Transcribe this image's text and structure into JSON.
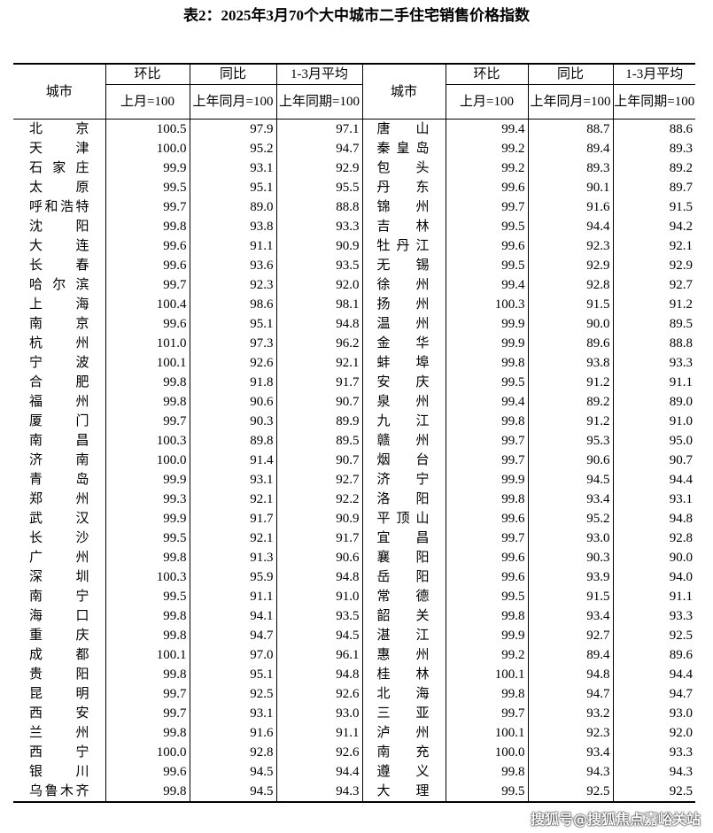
{
  "title": "表2：2025年3月70个大中城市二手住宅销售价格指数",
  "headers": {
    "city": "城市",
    "mom": "环比",
    "yoy": "同比",
    "avg": "1-3月平均",
    "mom_base": "上月=100",
    "yoy_base": "上年同月=100",
    "avg_base": "上年同期=100"
  },
  "rows": [
    [
      [
        "北京",
        "100.5",
        "97.9",
        "97.1"
      ],
      [
        "唐山",
        "99.4",
        "88.7",
        "88.6"
      ]
    ],
    [
      [
        "天津",
        "100.0",
        "95.2",
        "94.7"
      ],
      [
        "秦皇岛",
        "99.2",
        "89.4",
        "89.3"
      ]
    ],
    [
      [
        "石家庄",
        "99.9",
        "93.1",
        "92.9"
      ],
      [
        "包头",
        "99.2",
        "89.3",
        "89.2"
      ]
    ],
    [
      [
        "太原",
        "99.5",
        "95.1",
        "95.5"
      ],
      [
        "丹东",
        "99.6",
        "90.1",
        "89.7"
      ]
    ],
    [
      [
        "呼和浩特",
        "99.7",
        "89.0",
        "88.8"
      ],
      [
        "锦州",
        "99.7",
        "91.6",
        "91.5"
      ]
    ],
    [
      [
        "沈阳",
        "99.8",
        "93.8",
        "93.3"
      ],
      [
        "吉林",
        "99.5",
        "94.4",
        "94.2"
      ]
    ],
    [
      [
        "大连",
        "99.6",
        "91.1",
        "90.9"
      ],
      [
        "牡丹江",
        "99.6",
        "92.3",
        "92.1"
      ]
    ],
    [
      [
        "长春",
        "99.6",
        "93.6",
        "93.5"
      ],
      [
        "无锡",
        "99.5",
        "92.9",
        "92.9"
      ]
    ],
    [
      [
        "哈尔滨",
        "99.7",
        "92.3",
        "92.0"
      ],
      [
        "徐州",
        "99.4",
        "92.8",
        "92.7"
      ]
    ],
    [
      [
        "上海",
        "100.4",
        "98.6",
        "98.1"
      ],
      [
        "扬州",
        "100.3",
        "91.5",
        "91.2"
      ]
    ],
    [
      [
        "南京",
        "99.6",
        "95.1",
        "94.8"
      ],
      [
        "温州",
        "99.9",
        "90.0",
        "89.5"
      ]
    ],
    [
      [
        "杭州",
        "101.0",
        "97.3",
        "96.2"
      ],
      [
        "金华",
        "99.9",
        "89.6",
        "88.8"
      ]
    ],
    [
      [
        "宁波",
        "100.1",
        "92.6",
        "92.1"
      ],
      [
        "蚌埠",
        "99.8",
        "93.8",
        "93.3"
      ]
    ],
    [
      [
        "合肥",
        "99.8",
        "91.8",
        "91.7"
      ],
      [
        "安庆",
        "99.5",
        "91.2",
        "91.1"
      ]
    ],
    [
      [
        "福州",
        "99.8",
        "90.6",
        "90.7"
      ],
      [
        "泉州",
        "99.4",
        "89.2",
        "89.0"
      ]
    ],
    [
      [
        "厦门",
        "99.7",
        "90.3",
        "89.9"
      ],
      [
        "九江",
        "99.8",
        "91.2",
        "91.0"
      ]
    ],
    [
      [
        "南昌",
        "100.3",
        "89.8",
        "89.5"
      ],
      [
        "赣州",
        "99.7",
        "95.3",
        "95.0"
      ]
    ],
    [
      [
        "济南",
        "100.0",
        "91.4",
        "90.7"
      ],
      [
        "烟台",
        "99.7",
        "90.6",
        "90.7"
      ]
    ],
    [
      [
        "青岛",
        "99.9",
        "93.1",
        "92.7"
      ],
      [
        "济宁",
        "99.9",
        "94.5",
        "94.4"
      ]
    ],
    [
      [
        "郑州",
        "99.3",
        "92.1",
        "92.2"
      ],
      [
        "洛阳",
        "99.8",
        "93.4",
        "93.1"
      ]
    ],
    [
      [
        "武汉",
        "99.9",
        "91.7",
        "90.9"
      ],
      [
        "平顶山",
        "99.6",
        "95.2",
        "94.8"
      ]
    ],
    [
      [
        "长沙",
        "99.5",
        "92.1",
        "91.7"
      ],
      [
        "宜昌",
        "99.7",
        "93.0",
        "92.8"
      ]
    ],
    [
      [
        "广州",
        "99.8",
        "91.3",
        "90.6"
      ],
      [
        "襄阳",
        "99.6",
        "90.3",
        "90.0"
      ]
    ],
    [
      [
        "深圳",
        "100.3",
        "95.9",
        "94.8"
      ],
      [
        "岳阳",
        "99.6",
        "93.9",
        "94.0"
      ]
    ],
    [
      [
        "南宁",
        "99.5",
        "91.1",
        "91.0"
      ],
      [
        "常德",
        "99.5",
        "91.5",
        "91.1"
      ]
    ],
    [
      [
        "海口",
        "99.8",
        "94.1",
        "93.5"
      ],
      [
        "韶关",
        "99.8",
        "93.4",
        "93.3"
      ]
    ],
    [
      [
        "重庆",
        "99.8",
        "94.7",
        "94.5"
      ],
      [
        "湛江",
        "99.9",
        "92.7",
        "92.5"
      ]
    ],
    [
      [
        "成都",
        "100.1",
        "97.0",
        "96.1"
      ],
      [
        "惠州",
        "99.2",
        "89.4",
        "89.6"
      ]
    ],
    [
      [
        "贵阳",
        "99.8",
        "95.1",
        "94.8"
      ],
      [
        "桂林",
        "100.1",
        "94.8",
        "94.4"
      ]
    ],
    [
      [
        "昆明",
        "99.7",
        "92.5",
        "92.6"
      ],
      [
        "北海",
        "99.8",
        "94.7",
        "94.7"
      ]
    ],
    [
      [
        "西安",
        "99.7",
        "93.1",
        "93.0"
      ],
      [
        "三亚",
        "99.7",
        "93.2",
        "93.0"
      ]
    ],
    [
      [
        "兰州",
        "99.8",
        "91.6",
        "91.1"
      ],
      [
        "泸州",
        "100.1",
        "92.3",
        "92.0"
      ]
    ],
    [
      [
        "西宁",
        "100.0",
        "92.8",
        "92.6"
      ],
      [
        "南充",
        "100.0",
        "93.4",
        "93.3"
      ]
    ],
    [
      [
        "银川",
        "99.6",
        "94.5",
        "94.4"
      ],
      [
        "遵义",
        "99.8",
        "94.3",
        "94.3"
      ]
    ],
    [
      [
        "乌鲁木齐",
        "99.8",
        "94.5",
        "94.3"
      ],
      [
        "大理",
        "99.5",
        "92.5",
        "92.5"
      ]
    ]
  ],
  "watermark": "搜狐号@搜狐焦点嘉峪关站"
}
